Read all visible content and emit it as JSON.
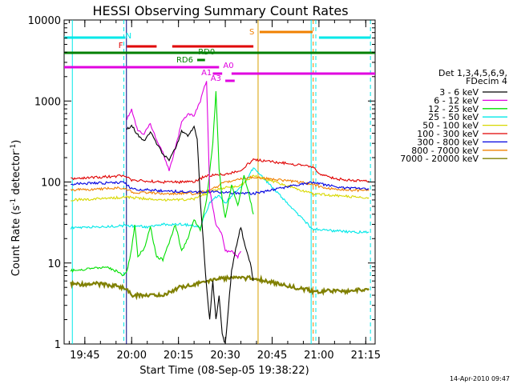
{
  "chart_data": {
    "type": "line",
    "title": "HESSI Observing Summary Count Rates",
    "xlabel": "Start Time (08-Sep-05 19:38:22)",
    "ylabel_main": "Count Rate (s",
    "ylabel_sup1": "-1",
    "ylabel_mid": " detector",
    "ylabel_sup2": "-1",
    "ylabel_end": ")",
    "yscale": "log",
    "ylim": [
      1,
      10000
    ],
    "xlim": [
      "19:38:22",
      "21:18:00"
    ],
    "xticks": [
      "19:45",
      "20:00",
      "20:15",
      "20:30",
      "20:45",
      "21:00",
      "21:15"
    ],
    "yticks": [
      "1",
      "10",
      "100",
      "1000",
      "10000"
    ],
    "legend_title_1": "Det 1,3,4,5,6,9,",
    "legend_title_2": "FDecim 4",
    "legend_placement": "right",
    "footer_date": "14-Apr-2010 09:47",
    "series": [
      {
        "name": "3 - 6 keV",
        "color": "#000000"
      },
      {
        "name": "6 - 12 keV",
        "color": "#e000e0"
      },
      {
        "name": "12 - 25 keV",
        "color": "#00e000"
      },
      {
        "name": "25 - 50 keV",
        "color": "#00e8e8"
      },
      {
        "name": "50 - 100 keV",
        "color": "#d8d800"
      },
      {
        "name": "100 - 300 keV",
        "color": "#e00000"
      },
      {
        "name": "300 - 800 keV",
        "color": "#0000e0"
      },
      {
        "name": "800 - 7000 keV",
        "color": "#f08000"
      },
      {
        "name": "7000 - 20000 keV",
        "color": "#808000"
      }
    ],
    "flags": [
      {
        "label": "N",
        "color": "#00e8e8"
      },
      {
        "label": "F",
        "color": "#e00000"
      },
      {
        "label": "S",
        "color": "#f08000"
      },
      {
        "label": "RD0",
        "color": "#008000"
      },
      {
        "label": "RD6",
        "color": "#008000"
      },
      {
        "label": "A0",
        "color": "#e000e0"
      },
      {
        "label": "A1",
        "color": "#e000e0"
      },
      {
        "label": "A3",
        "color": "#e000e0"
      }
    ],
    "series_points": {
      "3 - 6 keV": [
        [
          "19:58:30",
          450
        ],
        [
          "20:00",
          500
        ],
        [
          "20:02",
          380
        ],
        [
          "20:04",
          320
        ],
        [
          "20:06",
          420
        ],
        [
          "20:08",
          300
        ],
        [
          "20:10",
          220
        ],
        [
          "20:12",
          190
        ],
        [
          "20:14",
          260
        ],
        [
          "20:16",
          420
        ],
        [
          "20:18",
          380
        ],
        [
          "20:20",
          470
        ],
        [
          "20:21",
          350
        ],
        [
          "20:22",
          60
        ],
        [
          "20:24",
          5
        ],
        [
          "20:25",
          2
        ],
        [
          "20:26",
          6
        ],
        [
          "20:27",
          2
        ],
        [
          "20:28",
          4
        ],
        [
          "20:29",
          1.3
        ],
        [
          "20:30",
          1
        ],
        [
          "20:32",
          8
        ],
        [
          "20:34",
          20
        ],
        [
          "20:35",
          28
        ],
        [
          "20:36",
          18
        ],
        [
          "20:38",
          10
        ],
        [
          "20:39",
          6
        ]
      ],
      "6 - 12 keV": [
        [
          "19:58:30",
          600
        ],
        [
          "20:00",
          800
        ],
        [
          "20:02",
          420
        ],
        [
          "20:04",
          400
        ],
        [
          "20:06",
          520
        ],
        [
          "20:08",
          330
        ],
        [
          "20:10",
          230
        ],
        [
          "20:12",
          140
        ],
        [
          "20:14",
          260
        ],
        [
          "20:16",
          550
        ],
        [
          "20:18",
          700
        ],
        [
          "20:20",
          650
        ],
        [
          "20:22",
          1000
        ],
        [
          "20:24",
          1800
        ],
        [
          "20:25",
          80
        ],
        [
          "20:27",
          30
        ],
        [
          "20:29",
          22
        ],
        [
          "20:30",
          14
        ],
        [
          "20:32",
          14
        ],
        [
          "20:34",
          12
        ],
        [
          "20:35",
          14
        ]
      ],
      "12 - 25 keV": [
        [
          "19:40:30",
          8
        ],
        [
          "19:52",
          9
        ],
        [
          "19:55",
          8
        ],
        [
          "19:57",
          7
        ],
        [
          "19:58:30",
          8
        ],
        [
          "20:00",
          15
        ],
        [
          "20:01",
          30
        ],
        [
          "20:02",
          12
        ],
        [
          "20:04",
          15
        ],
        [
          "20:06",
          28
        ],
        [
          "20:08",
          12
        ],
        [
          "20:10",
          11
        ],
        [
          "20:12",
          18
        ],
        [
          "20:14",
          30
        ],
        [
          "20:16",
          14
        ],
        [
          "20:18",
          20
        ],
        [
          "20:20",
          35
        ],
        [
          "20:22",
          25
        ],
        [
          "20:24",
          60
        ],
        [
          "20:26",
          300
        ],
        [
          "20:27",
          1300
        ],
        [
          "20:28",
          150
        ],
        [
          "20:29",
          60
        ],
        [
          "20:30",
          35
        ],
        [
          "20:32",
          90
        ],
        [
          "20:34",
          50
        ],
        [
          "20:36",
          120
        ],
        [
          "20:38",
          60
        ],
        [
          "20:39",
          40
        ]
      ],
      "25 - 50 keV": [
        [
          "19:40:30",
          27
        ],
        [
          "19:50",
          28
        ],
        [
          "19:58",
          29
        ],
        [
          "20:05",
          28
        ],
        [
          "20:10",
          30
        ],
        [
          "20:15",
          30
        ],
        [
          "20:20",
          29
        ],
        [
          "20:22",
          28
        ],
        [
          "20:25",
          55
        ],
        [
          "20:28",
          70
        ],
        [
          "20:30",
          55
        ],
        [
          "20:33",
          75
        ],
        [
          "20:36",
          95
        ],
        [
          "20:39",
          150
        ],
        [
          "20:58",
          26
        ],
        [
          "21:00",
          26
        ],
        [
          "21:05",
          25
        ],
        [
          "21:10",
          24
        ],
        [
          "21:16",
          24
        ]
      ],
      "50 - 100 keV": [
        [
          "19:40:30",
          60
        ],
        [
          "19:50",
          62
        ],
        [
          "19:58",
          65
        ],
        [
          "20:05",
          62
        ],
        [
          "20:10",
          60
        ],
        [
          "20:15",
          60
        ],
        [
          "20:20",
          62
        ],
        [
          "20:25",
          75
        ],
        [
          "20:30",
          85
        ],
        [
          "20:35",
          90
        ],
        [
          "20:39",
          120
        ],
        [
          "20:58",
          72
        ],
        [
          "21:05",
          68
        ],
        [
          "21:10",
          66
        ],
        [
          "21:16",
          64
        ]
      ],
      "100 - 300 keV": [
        [
          "19:40:30",
          110
        ],
        [
          "19:50",
          115
        ],
        [
          "19:58",
          120
        ],
        [
          "20:00",
          105
        ],
        [
          "20:10",
          100
        ],
        [
          "20:20",
          100
        ],
        [
          "20:23",
          115
        ],
        [
          "20:25",
          120
        ],
        [
          "20:30",
          125
        ],
        [
          "20:35",
          140
        ],
        [
          "20:39",
          190
        ],
        [
          "20:58",
          155
        ],
        [
          "21:00",
          125
        ],
        [
          "21:05",
          110
        ],
        [
          "21:10",
          105
        ],
        [
          "21:16",
          102
        ]
      ],
      "300 - 800 keV": [
        [
          "19:40:30",
          95
        ],
        [
          "19:50",
          97
        ],
        [
          "19:58",
          98
        ],
        [
          "20:00",
          82
        ],
        [
          "20:10",
          78
        ],
        [
          "20:20",
          75
        ],
        [
          "20:25",
          76
        ],
        [
          "20:30",
          74
        ],
        [
          "20:35",
          73
        ],
        [
          "20:39",
          72
        ],
        [
          "20:58",
          100
        ],
        [
          "21:00",
          96
        ],
        [
          "21:05",
          88
        ],
        [
          "21:10",
          84
        ],
        [
          "21:16",
          82
        ]
      ],
      "800 - 7000 keV": [
        [
          "19:40:30",
          80
        ],
        [
          "19:50",
          82
        ],
        [
          "19:58",
          85
        ],
        [
          "20:00",
          75
        ],
        [
          "20:10",
          72
        ],
        [
          "20:20",
          72
        ],
        [
          "20:25",
          78
        ],
        [
          "20:30",
          100
        ],
        [
          "20:35",
          110
        ],
        [
          "20:39",
          115
        ],
        [
          "20:58",
          95
        ],
        [
          "21:00",
          88
        ],
        [
          "21:05",
          82
        ],
        [
          "21:10",
          80
        ],
        [
          "21:16",
          78
        ]
      ],
      "7000 - 20000 keV": [
        [
          "19:40:30",
          5.5
        ],
        [
          "19:50",
          5.5
        ],
        [
          "19:58",
          5
        ],
        [
          "20:00",
          4
        ],
        [
          "20:05",
          4
        ],
        [
          "20:10",
          4
        ],
        [
          "20:15",
          5
        ],
        [
          "20:20",
          5.5
        ],
        [
          "20:25",
          6
        ],
        [
          "20:30",
          6.5
        ],
        [
          "20:35",
          6.5
        ],
        [
          "20:39",
          6.5
        ],
        [
          "20:58",
          4.5
        ],
        [
          "21:05",
          4.5
        ],
        [
          "21:10",
          4.5
        ],
        [
          "21:16",
          4.8
        ]
      ]
    }
  }
}
